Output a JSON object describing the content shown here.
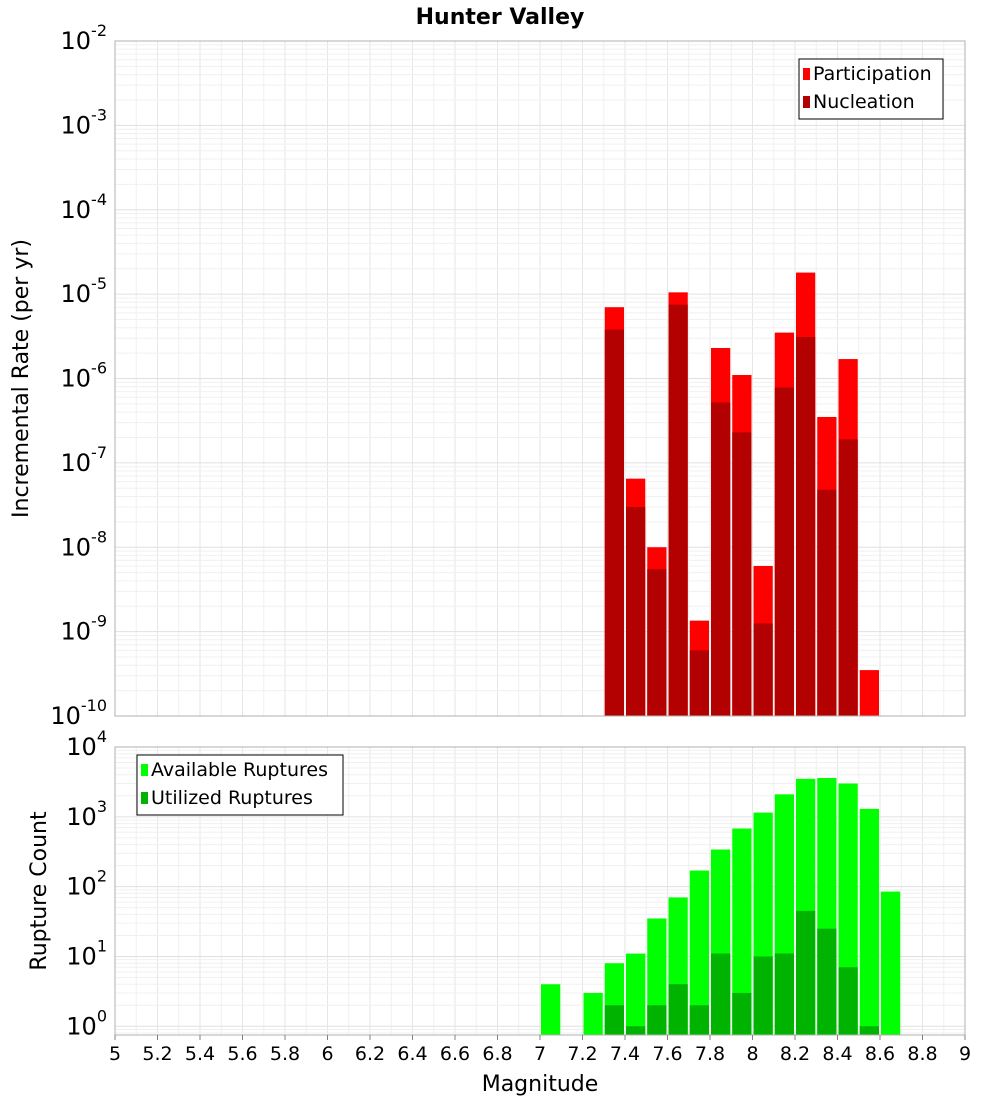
{
  "title": "Hunter Valley",
  "xlabel": "Magnitude",
  "chart_data": [
    {
      "type": "bar",
      "title": "Hunter Valley",
      "xlabel": "Magnitude",
      "ylabel": "Incremental Rate (per yr)",
      "yscale": "log",
      "ylim": [
        1e-10,
        0.01
      ],
      "xlim": [
        5,
        9
      ],
      "ytick_exponents": [
        -10,
        -9,
        -8,
        -7,
        -6,
        -5,
        -4,
        -3,
        -2
      ],
      "grid": true,
      "legend_position": "top-right",
      "x": [
        7.35,
        7.45,
        7.55,
        7.65,
        7.75,
        7.85,
        7.95,
        8.05,
        8.15,
        8.25,
        8.35,
        8.45,
        8.55
      ],
      "series": [
        {
          "name": "Participation",
          "color": "#ff0000",
          "values": [
            7e-06,
            6.5e-08,
            1e-08,
            1.05e-05,
            1.35e-09,
            2.3e-06,
            1.1e-06,
            6e-09,
            3.5e-06,
            1.8e-05,
            3.5e-07,
            1.7e-06,
            3.5e-10
          ]
        },
        {
          "name": "Nucleation",
          "color": "#b30000",
          "values": [
            3.8e-06,
            3e-08,
            5.5e-09,
            7.5e-06,
            6e-10,
            5.2e-07,
            2.3e-07,
            1.25e-09,
            7.8e-07,
            3.1e-06,
            4.8e-08,
            1.9e-07,
            null
          ]
        }
      ]
    },
    {
      "type": "bar",
      "ylabel": "Rupture Count",
      "yscale": "log",
      "ylim": [
        0.75,
        10000
      ],
      "xlim": [
        5,
        9
      ],
      "ytick_exponents": [
        0,
        1,
        2,
        3,
        4
      ],
      "grid": true,
      "legend_position": "top-left",
      "x": [
        7.05,
        7.15,
        7.25,
        7.35,
        7.45,
        7.55,
        7.65,
        7.75,
        7.85,
        7.95,
        8.05,
        8.15,
        8.25,
        8.35,
        8.45,
        8.55,
        8.65
      ],
      "series": [
        {
          "name": "Available Ruptures",
          "color": "#00ff00",
          "values": [
            4,
            null,
            3,
            8,
            11,
            35,
            70,
            170,
            340,
            680,
            1150,
            2100,
            3500,
            3600,
            3000,
            1300,
            85
          ]
        },
        {
          "name": "Utilized Ruptures",
          "color": "#00b300",
          "values": [
            null,
            null,
            null,
            2,
            1,
            2,
            4,
            2,
            11,
            3,
            10,
            11,
            45,
            25,
            7,
            1,
            null
          ]
        }
      ]
    }
  ],
  "xtick_labels": [
    "5",
    "5.2",
    "5.4",
    "5.6",
    "5.8",
    "6",
    "6.2",
    "6.4",
    "6.6",
    "6.8",
    "7",
    "7.2",
    "7.4",
    "7.6",
    "7.8",
    "8",
    "8.2",
    "8.4",
    "8.6",
    "8.8",
    "9"
  ]
}
